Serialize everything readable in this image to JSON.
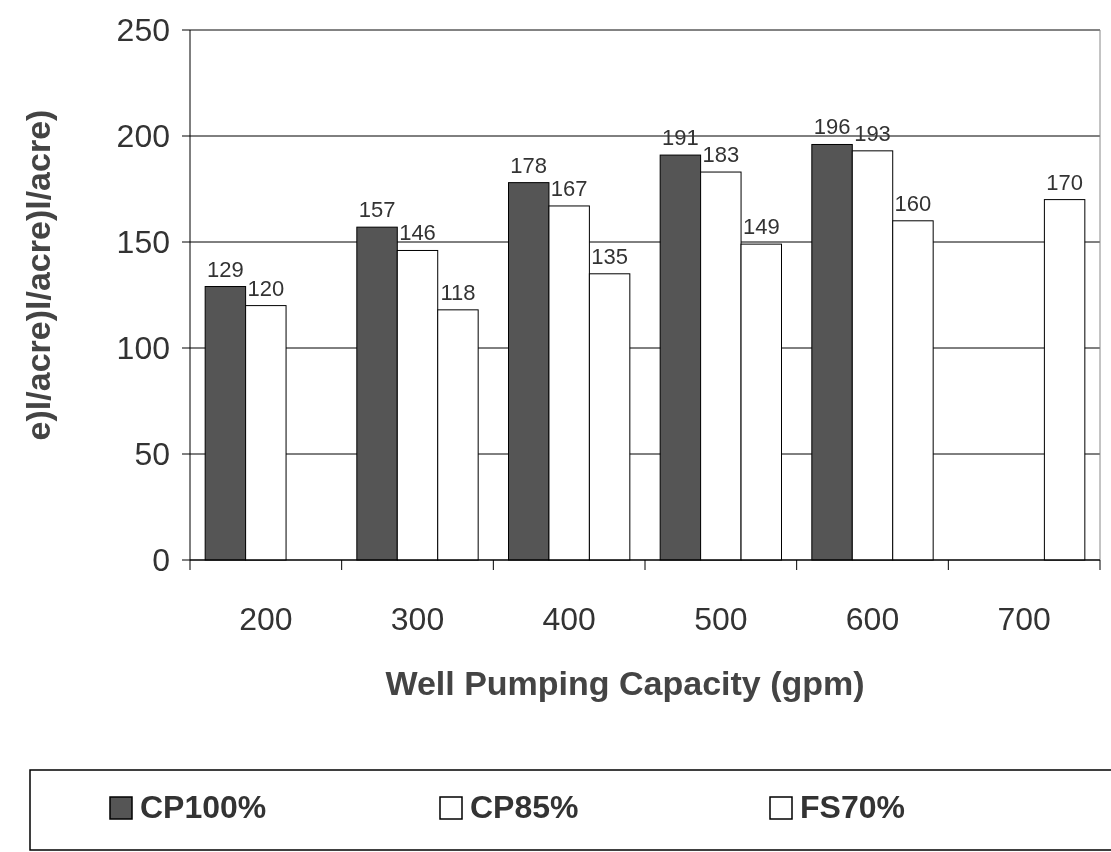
{
  "chart_data": {
    "type": "bar",
    "xlabel": "Well Pumping Capacity (gpm)",
    "ylabel": "e)l/acre)l/acre)l/acre)",
    "categories": [
      "200",
      "300",
      "400",
      "500",
      "600",
      "700"
    ],
    "series": [
      {
        "name": "CP100%",
        "color": "#555555",
        "values": [
          129,
          157,
          178,
          191,
          196,
          null
        ]
      },
      {
        "name": "CP85%",
        "color": "#ffffff",
        "values": [
          120,
          146,
          167,
          183,
          193,
          null
        ]
      },
      {
        "name": "FS70%",
        "color": "#ffffff",
        "values": [
          null,
          118,
          135,
          149,
          160,
          170
        ]
      }
    ],
    "ylim": [
      0,
      250
    ],
    "yticks": [
      0,
      50,
      100,
      150,
      200,
      250
    ],
    "grid": "y",
    "legend": "bottom",
    "data_labels": true
  }
}
